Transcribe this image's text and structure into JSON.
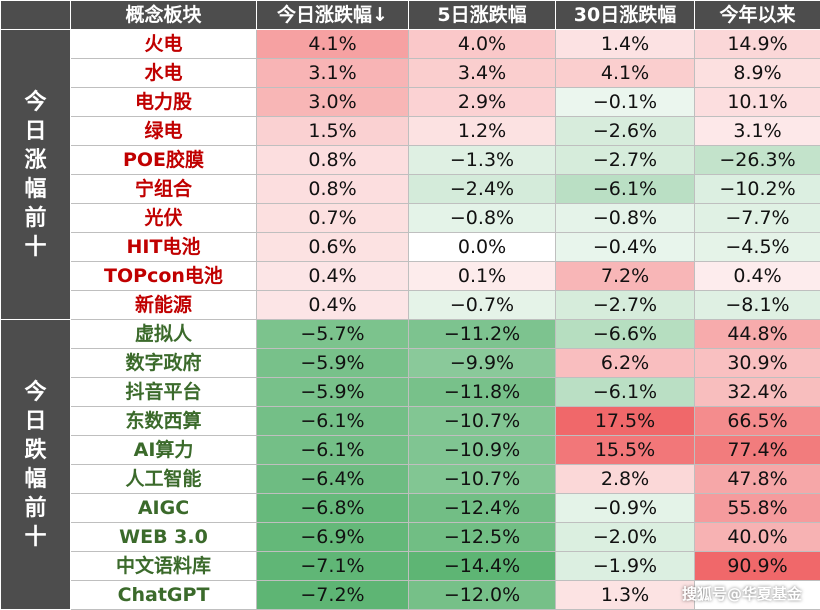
{
  "chart_data": {
    "type": "table",
    "columns": [
      "",
      "概念板块",
      "今日涨跌幅↓",
      "5日涨跌幅",
      "30日涨跌幅",
      "今年以来"
    ],
    "groups": [
      {
        "label": "今日涨幅前十",
        "name_color": "red",
        "rows": [
          {
            "name": "火电",
            "values": [
              "4.1%",
              "4.0%",
              "1.4%",
              "14.9%"
            ],
            "nums": [
              4.1,
              4.0,
              1.4,
              14.9
            ]
          },
          {
            "name": "水电",
            "values": [
              "3.1%",
              "3.4%",
              "4.1%",
              "8.9%"
            ],
            "nums": [
              3.1,
              3.4,
              4.1,
              8.9
            ]
          },
          {
            "name": "电力股",
            "values": [
              "3.0%",
              "2.9%",
              "−0.1%",
              "10.1%"
            ],
            "nums": [
              3.0,
              2.9,
              -0.1,
              10.1
            ]
          },
          {
            "name": "绿电",
            "values": [
              "1.5%",
              "1.2%",
              "−2.6%",
              "3.1%"
            ],
            "nums": [
              1.5,
              1.2,
              -2.6,
              3.1
            ]
          },
          {
            "name": "POE胶膜",
            "values": [
              "0.8%",
              "−1.3%",
              "−2.7%",
              "−26.3%"
            ],
            "nums": [
              0.8,
              -1.3,
              -2.7,
              -26.3
            ]
          },
          {
            "name": "宁组合",
            "values": [
              "0.8%",
              "−2.4%",
              "−6.1%",
              "−10.2%"
            ],
            "nums": [
              0.8,
              -2.4,
              -6.1,
              -10.2
            ]
          },
          {
            "name": "光伏",
            "values": [
              "0.7%",
              "−0.8%",
              "−0.8%",
              "−7.7%"
            ],
            "nums": [
              0.7,
              -0.8,
              -0.8,
              -7.7
            ]
          },
          {
            "name": "HIT电池",
            "values": [
              "0.6%",
              "0.0%",
              "−0.4%",
              "−4.5%"
            ],
            "nums": [
              0.6,
              0.0,
              -0.4,
              -4.5
            ]
          },
          {
            "name": "TOPcon电池",
            "values": [
              "0.4%",
              "0.1%",
              "7.2%",
              "0.4%"
            ],
            "nums": [
              0.4,
              0.1,
              7.2,
              0.4
            ]
          },
          {
            "name": "新能源",
            "values": [
              "0.4%",
              "−0.7%",
              "−2.7%",
              "−8.1%"
            ],
            "nums": [
              0.4,
              -0.7,
              -2.7,
              -8.1
            ]
          }
        ]
      },
      {
        "label": "今日跌幅前十",
        "name_color": "green",
        "rows": [
          {
            "name": "虚拟人",
            "values": [
              "−5.7%",
              "−11.2%",
              "−6.6%",
              "44.8%"
            ],
            "nums": [
              -5.7,
              -11.2,
              -6.6,
              44.8
            ]
          },
          {
            "name": "数字政府",
            "values": [
              "−5.9%",
              "−9.9%",
              "6.2%",
              "30.9%"
            ],
            "nums": [
              -5.9,
              -9.9,
              6.2,
              30.9
            ]
          },
          {
            "name": "抖音平台",
            "values": [
              "−5.9%",
              "−11.8%",
              "−6.1%",
              "32.4%"
            ],
            "nums": [
              -5.9,
              -11.8,
              -6.1,
              32.4
            ]
          },
          {
            "name": "东数西算",
            "values": [
              "−6.1%",
              "−10.7%",
              "17.5%",
              "66.5%"
            ],
            "nums": [
              -6.1,
              -10.7,
              17.5,
              66.5
            ]
          },
          {
            "name": "AI算力",
            "values": [
              "−6.1%",
              "−10.9%",
              "15.5%",
              "77.4%"
            ],
            "nums": [
              -6.1,
              -10.9,
              15.5,
              77.4
            ]
          },
          {
            "name": "人工智能",
            "values": [
              "−6.4%",
              "−10.7%",
              "2.8%",
              "47.8%"
            ],
            "nums": [
              -6.4,
              -10.7,
              2.8,
              47.8
            ]
          },
          {
            "name": "AIGC",
            "values": [
              "−6.8%",
              "−12.4%",
              "−0.9%",
              "55.8%"
            ],
            "nums": [
              -6.8,
              -12.4,
              -0.9,
              55.8
            ]
          },
          {
            "name": "WEB 3.0",
            "values": [
              "−6.9%",
              "−12.5%",
              "−2.0%",
              "40.0%"
            ],
            "nums": [
              -6.9,
              -12.5,
              -2.0,
              40.0
            ]
          },
          {
            "name": "中文语料库",
            "values": [
              "−7.1%",
              "−14.4%",
              "−1.9%",
              "90.9%"
            ],
            "nums": [
              -7.1,
              -14.4,
              -1.9,
              90.9
            ]
          },
          {
            "name": "ChatGPT",
            "values": [
              "−7.2%",
              "−12.0%",
              "1.3%",
              ""
            ],
            "nums": [
              -7.2,
              -12.0,
              1.3,
              null
            ]
          }
        ]
      }
    ]
  },
  "watermark": "搜狐号@华夏基金",
  "colors": {
    "header_bg": "#4d4d4d",
    "positive_max": "#f0686a",
    "negative_max": "#5eb574",
    "name_red": "#c00000",
    "name_green": "#3b6a2b"
  }
}
